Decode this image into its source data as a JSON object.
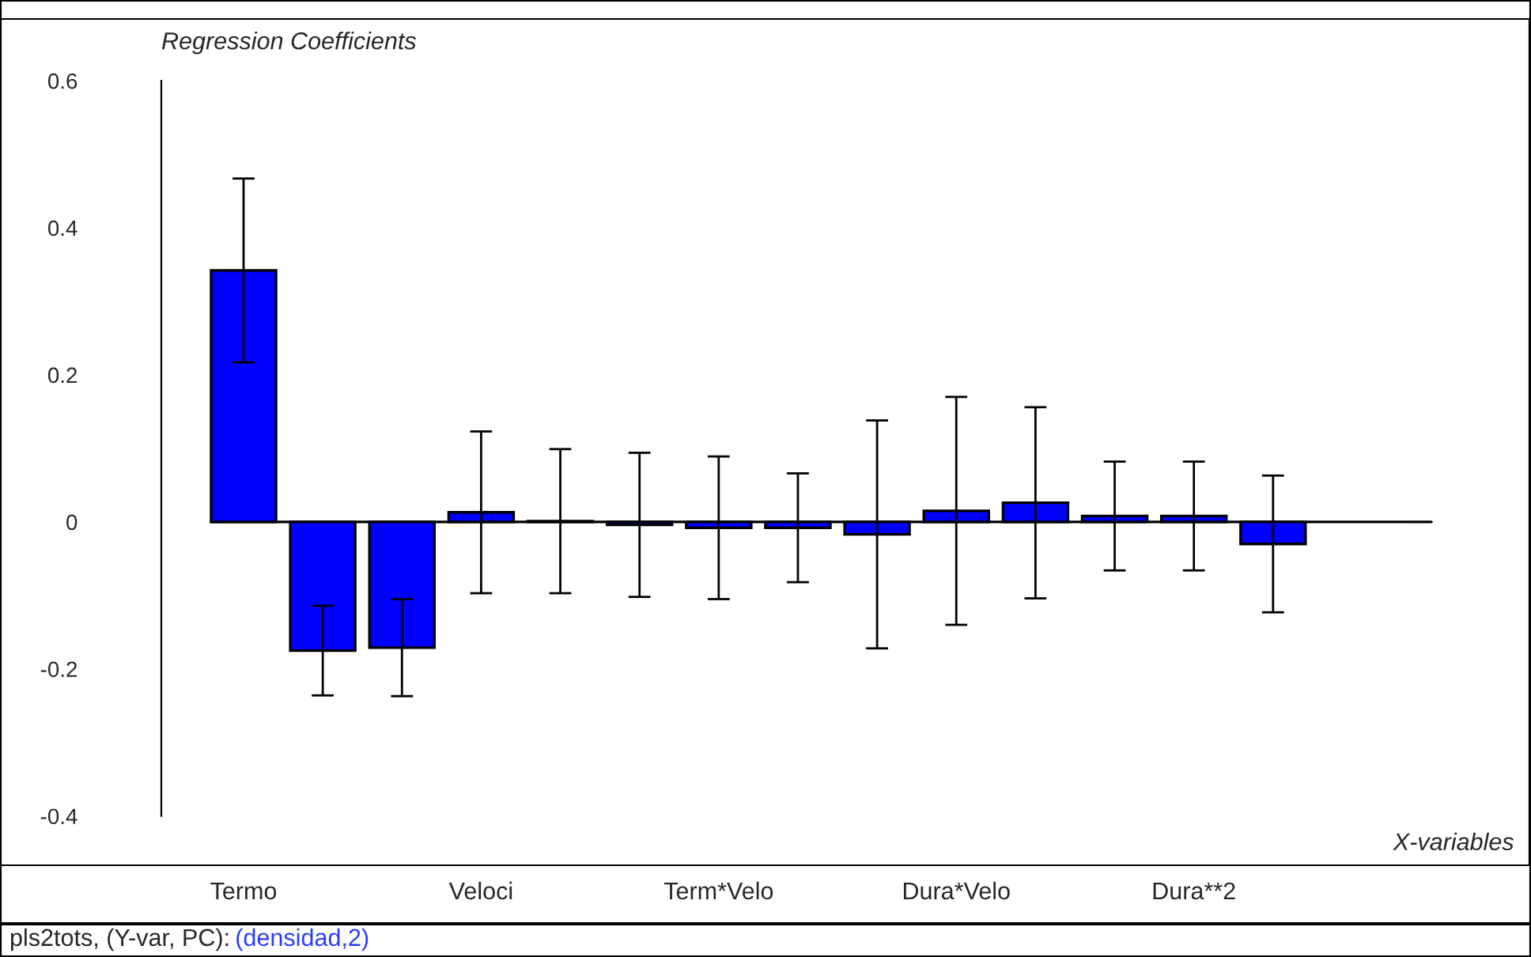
{
  "chart_data": {
    "type": "bar",
    "ylabel": "Regression Coefficients",
    "xlabel": "X-variables",
    "categories": [
      "Termo",
      null,
      null,
      "Veloci",
      null,
      null,
      "Term*Velo",
      null,
      null,
      "Dura*Velo",
      null,
      null,
      "Dura**2",
      null,
      null,
      null
    ],
    "series": [
      {
        "color": "#0000ff",
        "values": [
          0.342,
          -0.175,
          -0.171,
          0.013,
          0.001,
          -0.004,
          -0.008,
          -0.008,
          -0.017,
          0.015,
          0.026,
          0.008,
          0.008,
          -0.03,
          null,
          null
        ],
        "errors": [
          0.125,
          0.061,
          0.066,
          0.11,
          0.098,
          0.098,
          0.097,
          0.074,
          0.155,
          0.155,
          0.13,
          0.074,
          0.074,
          0.093,
          null,
          null
        ]
      }
    ],
    "ylim": [
      -0.467,
      0.684
    ],
    "yticks": [
      -0.4,
      -0.2,
      0,
      0.2,
      0.4,
      0.6
    ],
    "ref_lines": [
      {
        "axis": "y",
        "value": 0
      }
    ],
    "grid": false,
    "legend": false,
    "annotations": [
      "pls2tots, (Y-var, PC):",
      "(densidad,2)"
    ]
  }
}
